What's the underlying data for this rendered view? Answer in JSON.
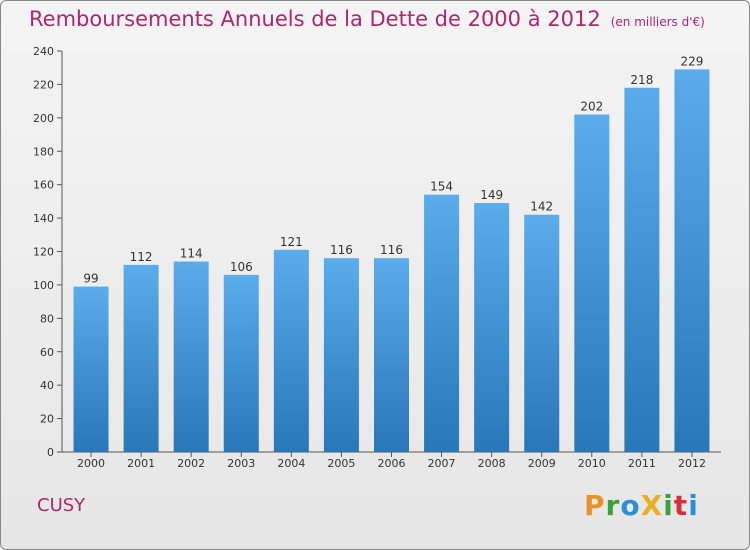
{
  "title": "Remboursements Annuels de la Dette de 2000 à 2012",
  "unit": "(en milliers d'€)",
  "commune": "CUSY",
  "logo": {
    "text": "ProXiti",
    "letters": [
      "P",
      "r",
      "o",
      "X",
      "i",
      "t",
      "i"
    ],
    "colors": [
      "#e8912a",
      "#3aa23a",
      "#2a8fd6",
      "#e8b020",
      "#3aa23a",
      "#d6303a",
      "#2a8fd6"
    ]
  },
  "colors": {
    "bar_top": "#5aaceb",
    "bar_bottom": "#2877b9",
    "title": "#b0256b"
  },
  "chart_data": {
    "type": "bar",
    "title": "Remboursements Annuels de la Dette de 2000 à 2012",
    "xlabel": "",
    "ylabel": "(en milliers d'€)",
    "categories": [
      "2000",
      "2001",
      "2002",
      "2003",
      "2004",
      "2005",
      "2006",
      "2007",
      "2008",
      "2009",
      "2010",
      "2011",
      "2012"
    ],
    "values": [
      99,
      112,
      114,
      106,
      121,
      116,
      116,
      154,
      149,
      142,
      202,
      218,
      229
    ],
    "ylim": [
      0,
      240
    ],
    "yticks": [
      0,
      20,
      40,
      60,
      80,
      100,
      120,
      140,
      160,
      180,
      200,
      220,
      240
    ],
    "grid": false
  }
}
